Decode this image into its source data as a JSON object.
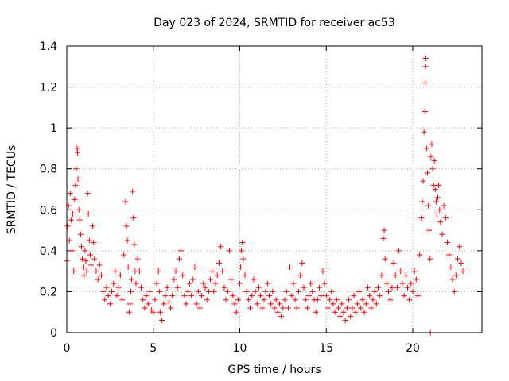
{
  "chart_data": {
    "type": "scatter",
    "title": "Day 023 of 2024, SRMTID for receiver ac53",
    "xlabel": "GPS time / hours",
    "ylabel": "SRMTID / TECUs",
    "xlim": [
      0,
      24
    ],
    "ylim": [
      0,
      1.4
    ],
    "xticks": [
      0,
      5,
      10,
      15,
      20
    ],
    "xtick_labels": [
      "0",
      "5",
      "10",
      "15",
      "20"
    ],
    "yticks": [
      0,
      0.2,
      0.4,
      0.6,
      0.8,
      1.0,
      1.2,
      1.4
    ],
    "ytick_labels": [
      "0",
      "0.2",
      "0.4",
      "0.6",
      "0.8",
      "1",
      "1.2",
      "1.4"
    ],
    "grid": true,
    "marker": "+",
    "color": "#ff0000",
    "series": [
      {
        "name": "SRMTID",
        "points": [
          [
            0.0,
            0.35
          ],
          [
            0.05,
            0.52
          ],
          [
            0.1,
            0.62
          ],
          [
            0.15,
            0.45
          ],
          [
            0.2,
            0.68
          ],
          [
            0.25,
            0.55
          ],
          [
            0.3,
            0.4
          ],
          [
            0.35,
            0.58
          ],
          [
            0.4,
            0.3
          ],
          [
            0.45,
            0.65
          ],
          [
            0.5,
            0.72
          ],
          [
            0.55,
            0.8
          ],
          [
            0.6,
            0.9
          ],
          [
            0.62,
            0.88
          ],
          [
            0.65,
            0.75
          ],
          [
            0.7,
            0.6
          ],
          [
            0.75,
            0.55
          ],
          [
            0.8,
            0.48
          ],
          [
            0.85,
            0.42
          ],
          [
            0.9,
            0.36
          ],
          [
            0.95,
            0.32
          ],
          [
            1.0,
            0.28
          ],
          [
            1.05,
            0.4
          ],
          [
            1.1,
            0.35
          ],
          [
            1.15,
            0.3
          ],
          [
            1.2,
            0.68
          ],
          [
            1.25,
            0.58
          ],
          [
            1.3,
            0.45
          ],
          [
            1.35,
            0.38
          ],
          [
            1.4,
            0.33
          ],
          [
            1.5,
            0.52
          ],
          [
            1.55,
            0.44
          ],
          [
            1.6,
            0.36
          ],
          [
            1.7,
            0.3
          ],
          [
            1.8,
            0.26
          ],
          [
            1.9,
            0.33
          ],
          [
            2.0,
            0.28
          ],
          [
            2.1,
            0.2
          ],
          [
            2.2,
            0.16
          ],
          [
            2.3,
            0.22
          ],
          [
            2.4,
            0.18
          ],
          [
            2.5,
            0.14
          ],
          [
            2.6,
            0.2
          ],
          [
            2.7,
            0.24
          ],
          [
            2.8,
            0.3
          ],
          [
            2.9,
            0.18
          ],
          [
            3.0,
            0.22
          ],
          [
            3.1,
            0.28
          ],
          [
            3.2,
            0.16
          ],
          [
            3.3,
            0.38
          ],
          [
            3.4,
            0.64
          ],
          [
            3.45,
            0.52
          ],
          [
            3.5,
            0.45
          ],
          [
            3.55,
            0.32
          ],
          [
            3.6,
            0.1
          ],
          [
            3.65,
            0.14
          ],
          [
            3.7,
            0.2
          ],
          [
            3.75,
            0.26
          ],
          [
            3.8,
            0.69
          ],
          [
            3.85,
            0.56
          ],
          [
            3.9,
            0.43
          ],
          [
            3.95,
            0.3
          ],
          [
            4.0,
            0.24
          ],
          [
            4.1,
            0.36
          ],
          [
            4.2,
            0.3
          ],
          [
            4.3,
            0.22
          ],
          [
            4.4,
            0.16
          ],
          [
            4.5,
            0.12
          ],
          [
            4.6,
            0.18
          ],
          [
            4.7,
            0.14
          ],
          [
            4.8,
            0.2
          ],
          [
            4.9,
            0.11
          ],
          [
            5.0,
            0.1
          ],
          [
            5.1,
            0.16
          ],
          [
            5.2,
            0.24
          ],
          [
            5.3,
            0.3
          ],
          [
            5.35,
            0.2
          ],
          [
            5.4,
            0.1
          ],
          [
            5.5,
            0.06
          ],
          [
            5.6,
            0.14
          ],
          [
            5.7,
            0.18
          ],
          [
            5.8,
            0.22
          ],
          [
            5.9,
            0.15
          ],
          [
            6.0,
            0.12
          ],
          [
            6.1,
            0.18
          ],
          [
            6.2,
            0.26
          ],
          [
            6.3,
            0.3
          ],
          [
            6.4,
            0.22
          ],
          [
            6.5,
            0.36
          ],
          [
            6.6,
            0.4
          ],
          [
            6.7,
            0.28
          ],
          [
            6.8,
            0.18
          ],
          [
            6.9,
            0.14
          ],
          [
            7.0,
            0.2
          ],
          [
            7.1,
            0.24
          ],
          [
            7.2,
            0.18
          ],
          [
            7.3,
            0.26
          ],
          [
            7.4,
            0.32
          ],
          [
            7.5,
            0.14
          ],
          [
            7.6,
            0.2
          ],
          [
            7.7,
            0.12
          ],
          [
            7.8,
            0.18
          ],
          [
            7.9,
            0.24
          ],
          [
            8.0,
            0.22
          ],
          [
            8.1,
            0.16
          ],
          [
            8.2,
            0.2
          ],
          [
            8.3,
            0.26
          ],
          [
            8.4,
            0.3
          ],
          [
            8.5,
            0.2
          ],
          [
            8.6,
            0.24
          ],
          [
            8.7,
            0.28
          ],
          [
            8.8,
            0.34
          ],
          [
            8.9,
            0.42
          ],
          [
            9.0,
            0.3
          ],
          [
            9.1,
            0.22
          ],
          [
            9.2,
            0.16
          ],
          [
            9.3,
            0.2
          ],
          [
            9.4,
            0.4
          ],
          [
            9.5,
            0.26
          ],
          [
            9.6,
            0.18
          ],
          [
            9.7,
            0.14
          ],
          [
            9.8,
            0.1
          ],
          [
            9.9,
            0.16
          ],
          [
            10.0,
            0.24
          ],
          [
            10.05,
            0.32
          ],
          [
            10.1,
            0.4
          ],
          [
            10.15,
            0.44
          ],
          [
            10.2,
            0.36
          ],
          [
            10.3,
            0.28
          ],
          [
            10.4,
            0.2
          ],
          [
            10.5,
            0.16
          ],
          [
            10.6,
            0.12
          ],
          [
            10.7,
            0.18
          ],
          [
            10.8,
            0.26
          ],
          [
            10.9,
            0.2
          ],
          [
            11.0,
            0.14
          ],
          [
            11.1,
            0.22
          ],
          [
            11.2,
            0.18
          ],
          [
            11.3,
            0.12
          ],
          [
            11.4,
            0.16
          ],
          [
            11.5,
            0.2
          ],
          [
            11.6,
            0.24
          ],
          [
            11.7,
            0.18
          ],
          [
            11.8,
            0.14
          ],
          [
            11.9,
            0.2
          ],
          [
            12.0,
            0.12
          ],
          [
            12.1,
            0.16
          ],
          [
            12.2,
            0.1
          ],
          [
            12.3,
            0.14
          ],
          [
            12.4,
            0.08
          ],
          [
            12.5,
            0.12
          ],
          [
            12.6,
            0.16
          ],
          [
            12.7,
            0.2
          ],
          [
            12.8,
            0.12
          ],
          [
            12.9,
            0.32
          ],
          [
            13.0,
            0.18
          ],
          [
            13.1,
            0.24
          ],
          [
            13.2,
            0.16
          ],
          [
            13.3,
            0.12
          ],
          [
            13.4,
            0.2
          ],
          [
            13.5,
            0.28
          ],
          [
            13.6,
            0.34
          ],
          [
            13.7,
            0.22
          ],
          [
            13.8,
            0.16
          ],
          [
            13.9,
            0.12
          ],
          [
            14.0,
            0.18
          ],
          [
            14.1,
            0.24
          ],
          [
            14.2,
            0.2
          ],
          [
            14.3,
            0.16
          ],
          [
            14.4,
            0.1
          ],
          [
            14.5,
            0.16
          ],
          [
            14.6,
            0.22
          ],
          [
            14.7,
            0.18
          ],
          [
            14.8,
            0.3
          ],
          [
            14.9,
            0.24
          ],
          [
            15.0,
            0.18
          ],
          [
            15.1,
            0.12
          ],
          [
            15.2,
            0.16
          ],
          [
            15.3,
            0.2
          ],
          [
            15.4,
            0.14
          ],
          [
            15.5,
            0.1
          ],
          [
            15.6,
            0.16
          ],
          [
            15.7,
            0.12
          ],
          [
            15.8,
            0.08
          ],
          [
            15.9,
            0.14
          ],
          [
            16.0,
            0.1
          ],
          [
            16.1,
            0.06
          ],
          [
            16.2,
            0.12
          ],
          [
            16.3,
            0.16
          ],
          [
            16.4,
            0.08
          ],
          [
            16.5,
            0.12
          ],
          [
            16.6,
            0.18
          ],
          [
            16.7,
            0.1
          ],
          [
            16.8,
            0.14
          ],
          [
            16.9,
            0.2
          ],
          [
            17.0,
            0.12
          ],
          [
            17.1,
            0.16
          ],
          [
            17.2,
            0.1
          ],
          [
            17.3,
            0.14
          ],
          [
            17.4,
            0.22
          ],
          [
            17.5,
            0.18
          ],
          [
            17.6,
            0.12
          ],
          [
            17.7,
            0.16
          ],
          [
            17.8,
            0.2
          ],
          [
            17.9,
            0.14
          ],
          [
            18.0,
            0.22
          ],
          [
            18.1,
            0.18
          ],
          [
            18.2,
            0.28
          ],
          [
            18.3,
            0.46
          ],
          [
            18.35,
            0.5
          ],
          [
            18.4,
            0.36
          ],
          [
            18.5,
            0.24
          ],
          [
            18.6,
            0.2
          ],
          [
            18.7,
            0.16
          ],
          [
            18.8,
            0.22
          ],
          [
            18.9,
            0.34
          ],
          [
            19.0,
            0.28
          ],
          [
            19.1,
            0.22
          ],
          [
            19.2,
            0.4
          ],
          [
            19.3,
            0.3
          ],
          [
            19.4,
            0.24
          ],
          [
            19.5,
            0.18
          ],
          [
            19.6,
            0.28
          ],
          [
            19.7,
            0.22
          ],
          [
            19.8,
            0.16
          ],
          [
            19.9,
            0.24
          ],
          [
            20.0,
            0.2
          ],
          [
            20.1,
            0.3
          ],
          [
            20.2,
            0.26
          ],
          [
            20.3,
            0.18
          ],
          [
            20.4,
            0.38
          ],
          [
            20.5,
            0.56
          ],
          [
            20.55,
            0.64
          ],
          [
            20.6,
            0.74
          ],
          [
            20.65,
            0.98
          ],
          [
            20.7,
            1.08
          ],
          [
            20.72,
            1.22
          ],
          [
            20.74,
            1.3
          ],
          [
            20.76,
            1.34
          ],
          [
            20.8,
            0.9
          ],
          [
            20.85,
            0.78
          ],
          [
            20.9,
            0.62
          ],
          [
            20.95,
            0.5
          ],
          [
            21.0,
            0.36
          ],
          [
            21.02,
            0.0
          ],
          [
            21.05,
            0.86
          ],
          [
            21.1,
            0.92
          ],
          [
            21.15,
            0.8
          ],
          [
            21.2,
            0.72
          ],
          [
            21.25,
            0.84
          ],
          [
            21.3,
            0.7
          ],
          [
            21.35,
            0.64
          ],
          [
            21.4,
            0.58
          ],
          [
            21.45,
            0.66
          ],
          [
            21.5,
            0.72
          ],
          [
            21.55,
            0.6
          ],
          [
            21.6,
            0.54
          ],
          [
            21.7,
            0.48
          ],
          [
            21.8,
            0.62
          ],
          [
            21.9,
            0.56
          ],
          [
            22.0,
            0.44
          ],
          [
            22.1,
            0.38
          ],
          [
            22.2,
            0.32
          ],
          [
            22.3,
            0.26
          ],
          [
            22.4,
            0.2
          ],
          [
            22.5,
            0.28
          ],
          [
            22.6,
            0.36
          ],
          [
            22.7,
            0.42
          ],
          [
            22.8,
            0.34
          ],
          [
            22.9,
            0.3
          ]
        ]
      }
    ]
  }
}
